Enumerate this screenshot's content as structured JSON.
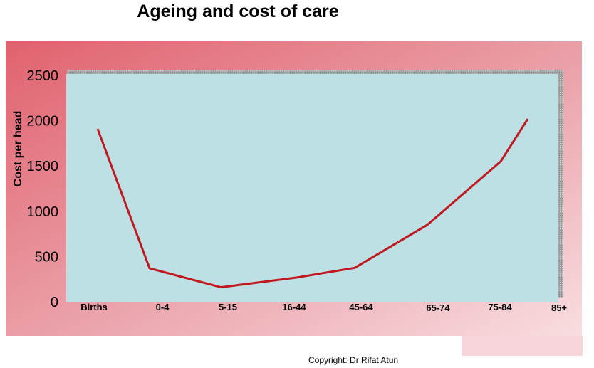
{
  "title": "Ageing and cost of care",
  "copyright": "Copyright: Dr Rifat Atun",
  "chart_data": {
    "type": "line",
    "title": "Ageing and cost of care",
    "ylabel": "Cost per head",
    "xlabel": "",
    "ylim": [
      0,
      2500
    ],
    "yticks": [
      0,
      500,
      1000,
      1500,
      2000,
      2500
    ],
    "categories": [
      "Births",
      "0-4",
      "5-15",
      "16-44",
      "45-64",
      "65-74",
      "75-84",
      "85+"
    ],
    "series": [
      {
        "values": [
          1910,
          370,
          160,
          270,
          375,
          850,
          1550,
          2020
        ]
      }
    ],
    "grid": false,
    "legend": "none"
  },
  "colors": {
    "line": "#c0181e",
    "plot_bg": "#bce0e4",
    "frame_start": "#e0626e",
    "frame_end": "#f6d6da"
  }
}
